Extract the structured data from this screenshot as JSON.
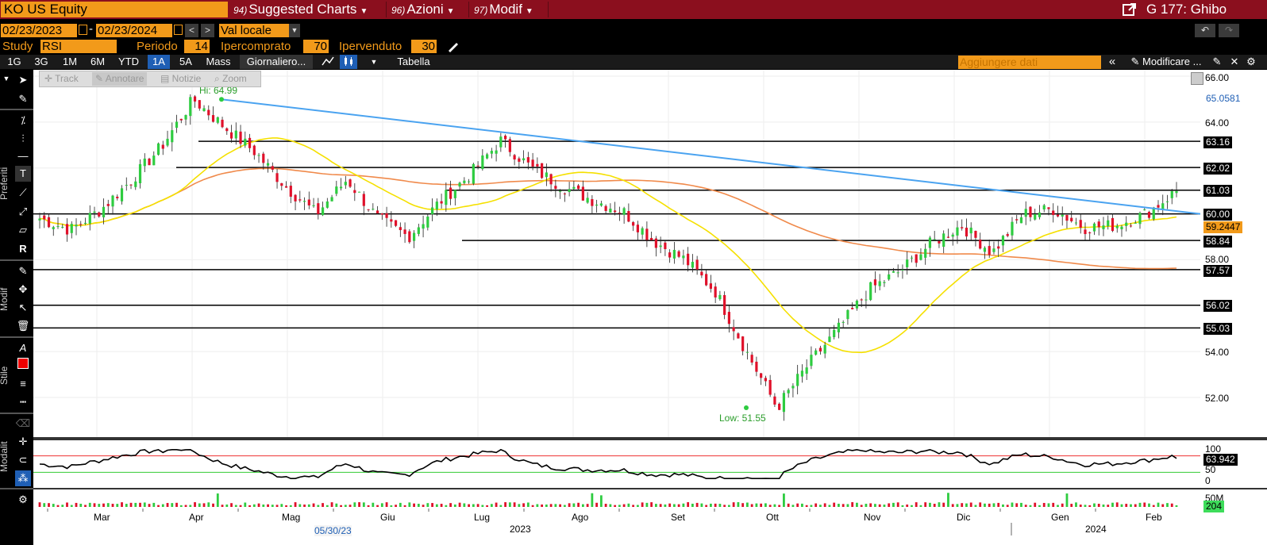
{
  "header": {
    "ticker": "KO US Equity",
    "menu": [
      {
        "num": "94)",
        "label": "Suggested Charts"
      },
      {
        "num": "96)",
        "label": "Azioni"
      },
      {
        "num": "97)",
        "label": "Modif"
      }
    ],
    "window_title": "G 177: Ghibo"
  },
  "range": {
    "start": "02/23/2023",
    "end": "02/23/2024",
    "currency": "Val locale"
  },
  "study": {
    "label": "Study",
    "value": "RSI",
    "period_label": "Periodo",
    "period": "14",
    "overbought_label": "Ipercomprato",
    "overbought": "70",
    "oversold_label": "Ipervenduto",
    "oversold": "30"
  },
  "timeframes": [
    "1G",
    "3G",
    "1M",
    "6M",
    "YTD",
    "1A",
    "5A",
    "Mass"
  ],
  "selected_timeframe": "1A",
  "frequency": "Giornaliero...",
  "table_label": "Tabella",
  "add_data_placeholder": "Aggiungere dati",
  "modify_label": "Modificare ...",
  "draw_toolbar": [
    "Track",
    "Annotare",
    "Notizie",
    "Zoom"
  ],
  "left_sections": [
    "Preferiti",
    "Modif",
    "Stile",
    "Modalit"
  ],
  "annotations": {
    "hi": "Hi: 64.99",
    "low": "Low: 51.55"
  },
  "y_axis": [
    "66.00",
    "64.00",
    "58.00",
    "54.00",
    "52.00"
  ],
  "y_boxes": [
    {
      "label": "65.0581",
      "style": "plain"
    },
    {
      "label": "63.16",
      "style": "black"
    },
    {
      "label": "62.02",
      "style": "black"
    },
    {
      "label": "61.03",
      "style": "black"
    },
    {
      "label": "60.00",
      "style": "black"
    },
    {
      "label": "59.2447",
      "style": "orange"
    },
    {
      "label": "58.84",
      "style": "black"
    },
    {
      "label": "57.57",
      "style": "black"
    },
    {
      "label": "56.02",
      "style": "black"
    },
    {
      "label": "55.03",
      "style": "black"
    }
  ],
  "rsi_axis": [
    "100",
    "50",
    "0"
  ],
  "rsi_value": "63.942",
  "vol_axis": "50M",
  "vol_value": "204",
  "x_axis": [
    "Mar",
    "Apr",
    "Mag",
    "Giu",
    "Lug",
    "Ago",
    "Set",
    "Ott",
    "Nov",
    "Dic",
    "Gen",
    "Feb"
  ],
  "x_years": [
    "2023",
    "2024"
  ],
  "cursor_date": "05/30/23",
  "colors": {
    "header_bg": "#8b0f1e",
    "accent_orange": "#f29a1a",
    "trendline": "#4aa3f0",
    "ma_fast": "#f5e000",
    "ma_slow": "#f08a4b",
    "up_candle": "#2ecc40",
    "down_candle": "#e0102a",
    "selected_blue": "#1f5fb5"
  },
  "chart_data": {
    "type": "candlestick",
    "y_range": [
      51,
      66.3
    ],
    "horizontal_levels": [
      63.16,
      62.02,
      61.03,
      60.0,
      58.84,
      57.57,
      56.02,
      55.03
    ],
    "trendline": {
      "from": 64.99,
      "to": 60.0
    },
    "hi": 64.99,
    "low": 51.55,
    "last": 61.03,
    "rsi_last": 63.942,
    "rsi_overbought": 70,
    "rsi_oversold": 30,
    "key_prices": [
      59.8,
      59.3,
      60.2,
      61.5,
      63.0,
      64.99,
      63.8,
      62.7,
      61.2,
      60.0,
      61.5,
      59.8,
      59.0,
      60.5,
      61.7,
      63.2,
      62.0,
      61.2,
      60.6,
      60.1,
      58.8,
      58.0,
      56.6,
      54.0,
      51.55,
      53.4,
      55.0,
      56.7,
      57.5,
      58.7,
      59.5,
      58.3,
      60.0,
      60.2,
      59.4,
      59.5,
      60.0,
      61.0
    ]
  }
}
